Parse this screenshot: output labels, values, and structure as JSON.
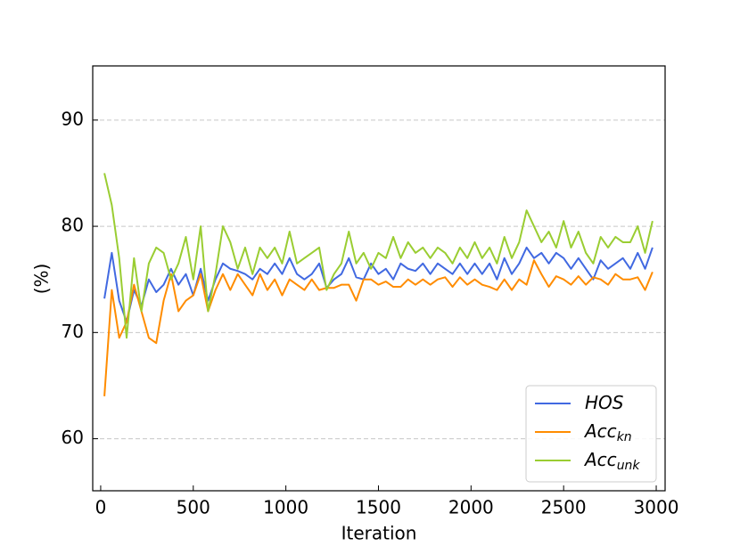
{
  "chart_data": {
    "type": "line",
    "xlabel": "Iteration",
    "ylabel": "(%)",
    "x": [
      20,
      60,
      100,
      140,
      180,
      220,
      260,
      300,
      340,
      380,
      420,
      460,
      500,
      540,
      580,
      620,
      660,
      700,
      740,
      780,
      820,
      860,
      900,
      940,
      980,
      1020,
      1060,
      1100,
      1140,
      1180,
      1220,
      1260,
      1300,
      1340,
      1380,
      1420,
      1460,
      1500,
      1540,
      1580,
      1620,
      1660,
      1700,
      1740,
      1780,
      1820,
      1860,
      1900,
      1940,
      1980,
      2020,
      2060,
      2100,
      2140,
      2180,
      2220,
      2260,
      2300,
      2340,
      2380,
      2420,
      2460,
      2500,
      2540,
      2580,
      2620,
      2660,
      2700,
      2740,
      2780,
      2820,
      2860,
      2900,
      2940,
      2980
    ],
    "series": [
      {
        "name": "HOS",
        "color": "#4169e1",
        "values": [
          73.2,
          77.5,
          73,
          71,
          74,
          72.5,
          75,
          73.8,
          74.5,
          76,
          74.5,
          75.5,
          73.5,
          76,
          73,
          75,
          76.5,
          76,
          75.8,
          75.5,
          75,
          76,
          75.5,
          76.5,
          75.5,
          77,
          75.5,
          75,
          75.5,
          76.5,
          74.2,
          75,
          75.5,
          77,
          75.2,
          75,
          76.5,
          75.5,
          76,
          75,
          76.5,
          76,
          75.8,
          76.5,
          75.5,
          76.5,
          76,
          75.5,
          76.5,
          75.5,
          76.5,
          75.5,
          76.5,
          75,
          77,
          75.5,
          76.5,
          78,
          77,
          77.5,
          76.5,
          77.5,
          77,
          76,
          77,
          76,
          75,
          76.8,
          76,
          76.5,
          77,
          76,
          77.5,
          76,
          78
        ]
      },
      {
        "name": "Acc",
        "subscript": "kn",
        "color": "#ff8c00",
        "values": [
          64,
          74,
          69.5,
          71,
          74.5,
          72,
          69.5,
          69,
          73,
          75.5,
          72,
          73,
          73.5,
          75.5,
          72,
          74,
          75.5,
          74,
          75.5,
          74.5,
          73.5,
          75.5,
          74,
          75,
          73.5,
          75,
          74.5,
          74,
          75,
          74,
          74.2,
          74.2,
          74.5,
          74.5,
          73,
          75,
          75,
          74.5,
          74.8,
          74.3,
          74.3,
          75,
          74.5,
          75,
          74.5,
          75,
          75.2,
          74.3,
          75.2,
          74.5,
          75,
          74.5,
          74.3,
          74,
          75,
          74,
          75,
          74.5,
          76.8,
          75.5,
          74.3,
          75.3,
          75,
          74.5,
          75.3,
          74.5,
          75.2,
          75,
          74.5,
          75.5,
          75,
          75,
          75.2,
          74,
          75.7
        ]
      },
      {
        "name": "Acc",
        "subscript": "unk",
        "color": "#9acd32",
        "values": [
          85,
          82,
          77,
          69.5,
          77,
          72,
          76.5,
          78,
          77.5,
          75,
          76.5,
          79,
          75,
          80,
          72,
          75.5,
          80,
          78.5,
          76,
          78,
          75.5,
          78,
          77,
          78,
          76.5,
          79.5,
          76.5,
          77,
          77.5,
          78,
          74,
          75.5,
          76.5,
          79.5,
          76.5,
          77.5,
          76,
          77.5,
          77,
          79,
          77,
          78.5,
          77.5,
          78,
          77,
          78,
          77.5,
          76.5,
          78,
          77,
          78.5,
          77,
          78,
          76.5,
          79,
          77,
          78.5,
          81.5,
          80,
          78.5,
          79.5,
          78,
          80.5,
          78,
          79.5,
          77.5,
          76.5,
          79,
          78,
          79,
          78.5,
          78.5,
          80,
          77.5,
          80.5
        ]
      }
    ],
    "xlim": [
      -43,
      3048
    ],
    "ylim": [
      55.1,
      95.1
    ],
    "xticks": [
      0,
      500,
      1000,
      1500,
      2000,
      2500,
      3000
    ],
    "yticks": [
      60,
      70,
      80,
      90
    ],
    "grid": true,
    "legend": "lower right"
  }
}
